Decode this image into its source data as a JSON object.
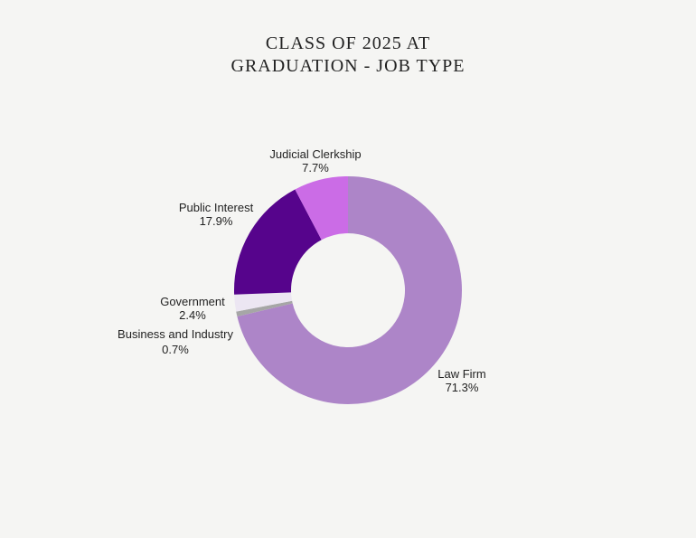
{
  "chart_data": {
    "type": "pie",
    "donut": true,
    "title_lines": [
      "CLASS OF 2025 AT",
      "GRADUATION - JOB TYPE"
    ],
    "slices": [
      {
        "label": "Law Firm",
        "value": 71.3,
        "display": "71.3%",
        "color": "#ad85c8"
      },
      {
        "label": "Business and Industry",
        "value": 0.7,
        "display": "0.7%",
        "color": "#a6a6a6"
      },
      {
        "label": "Government",
        "value": 2.4,
        "display": "2.4%",
        "color": "#ece6f2"
      },
      {
        "label": "Public Interest",
        "value": 17.9,
        "display": "17.9%",
        "color": "#56048c"
      },
      {
        "label": "Judicial Clerkship",
        "value": 7.7,
        "display": "7.7%",
        "color": "#cb6ce6"
      }
    ]
  }
}
